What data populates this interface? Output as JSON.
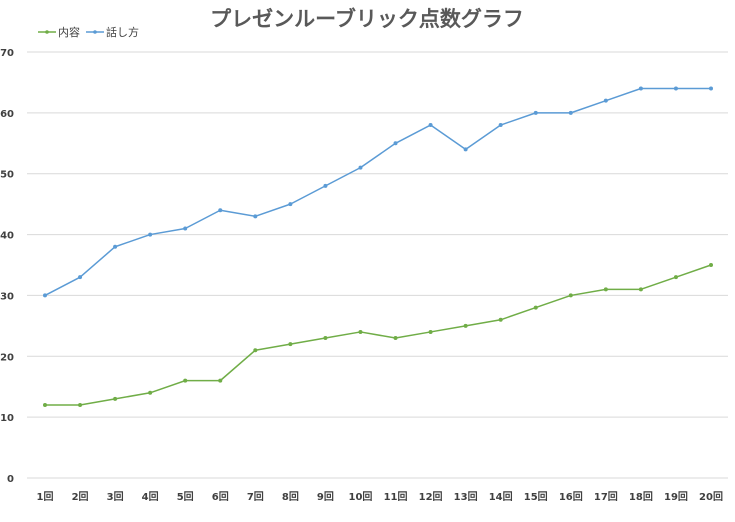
{
  "chart_data": {
    "type": "line",
    "title": "プレゼンルーブリック点数グラフ",
    "xlabel": "",
    "ylabel": "",
    "categories": [
      "1回",
      "2回",
      "3回",
      "4回",
      "5回",
      "6回",
      "7回",
      "8回",
      "9回",
      "10回",
      "11回",
      "12回",
      "13回",
      "14回",
      "15回",
      "16回",
      "17回",
      "18回",
      "19回",
      "20回"
    ],
    "ylim": [
      0,
      70
    ],
    "yticks": [
      0,
      10,
      20,
      30,
      40,
      50,
      60,
      70
    ],
    "grid": true,
    "legend": "top-left",
    "series": [
      {
        "name": "内容",
        "color": "#70ad47",
        "values": [
          12,
          12,
          13,
          14,
          16,
          16,
          21,
          22,
          23,
          24,
          23,
          24,
          25,
          26,
          28,
          30,
          31,
          31,
          33,
          35
        ]
      },
      {
        "name": "話し方",
        "color": "#5b9bd5",
        "values": [
          30,
          33,
          38,
          40,
          41,
          44,
          43,
          45,
          48,
          51,
          55,
          58,
          54,
          58,
          60,
          60,
          62,
          64,
          64,
          64
        ]
      }
    ]
  }
}
